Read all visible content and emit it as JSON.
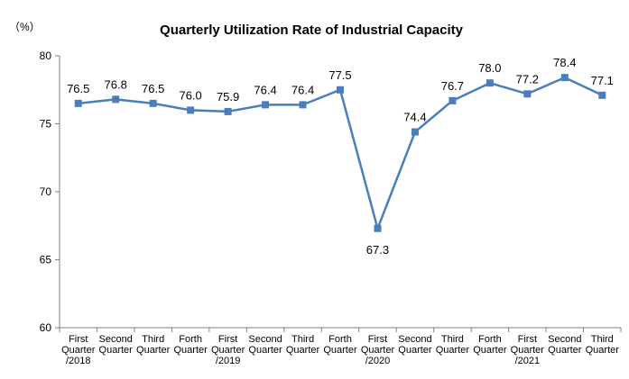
{
  "chart_data": {
    "type": "line",
    "title": "Quarterly Utilization Rate of Industrial Capacity",
    "unit_label": "（%）",
    "ylim": [
      60,
      80
    ],
    "y_ticks": [
      "60",
      "65",
      "70",
      "75",
      "80"
    ],
    "grid": false,
    "legend": "none",
    "categories": [
      [
        "First",
        "Quarter",
        "/2018"
      ],
      [
        "Second",
        "Quarter"
      ],
      [
        "Third",
        "Quarter"
      ],
      [
        "Forth",
        "Quarter"
      ],
      [
        "First",
        "Quarter",
        "/2019"
      ],
      [
        "Second",
        "Quarter"
      ],
      [
        "Third",
        "Quarter"
      ],
      [
        "Forth",
        "Quarter"
      ],
      [
        "First",
        "Quarter",
        "/2020"
      ],
      [
        "Second",
        "Quarter"
      ],
      [
        "Third",
        "Quarter"
      ],
      [
        "Forth",
        "Quarter"
      ],
      [
        "First",
        "Quarter",
        "/2021"
      ],
      [
        "Second",
        "Quarter"
      ],
      [
        "Third",
        "Quarter"
      ]
    ],
    "values": [
      76.5,
      76.8,
      76.5,
      76.0,
      75.9,
      76.4,
      76.4,
      77.5,
      67.3,
      74.4,
      76.7,
      78.0,
      77.2,
      78.4,
      77.1
    ],
    "data_labels": [
      "76.5",
      "76.8",
      "76.5",
      "76.0",
      "75.9",
      "76.4",
      "76.4",
      "77.5",
      "67.3",
      "74.4",
      "76.7",
      "78.0",
      "77.2",
      "78.4",
      "77.1"
    ],
    "colors": {
      "line": "#4A7EBB",
      "marker": "#4A7EBB",
      "axis": "#808080"
    }
  }
}
